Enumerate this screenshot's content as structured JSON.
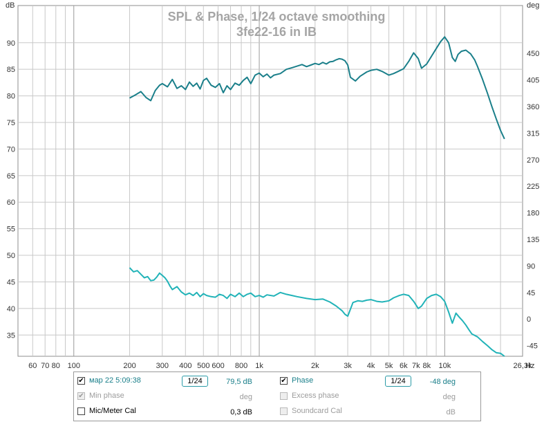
{
  "chart_data": {
    "type": "line",
    "title": "SPL & Phase, 1/24 octave smoothing",
    "subtitle": "3fe22-16 in IB",
    "ylabel_left": "dB",
    "ylabel_right": "deg",
    "xlabel": "Hz",
    "xscale": "log",
    "xlim": [
      50,
      26300
    ],
    "ylim_left": [
      31,
      97
    ],
    "ylim_right": [
      -63,
      531
    ],
    "x_ticks": [
      {
        "v": 60,
        "label": "60"
      },
      {
        "v": 70,
        "label": "70"
      },
      {
        "v": 80,
        "label": "80"
      },
      {
        "v": 100,
        "label": "100"
      },
      {
        "v": 200,
        "label": "200"
      },
      {
        "v": 300,
        "label": "300"
      },
      {
        "v": 400,
        "label": "400"
      },
      {
        "v": 500,
        "label": "500"
      },
      {
        "v": 600,
        "label": "600"
      },
      {
        "v": 800,
        "label": "800"
      },
      {
        "v": 1000,
        "label": "1k"
      },
      {
        "v": 2000,
        "label": "2k"
      },
      {
        "v": 3000,
        "label": "3k"
      },
      {
        "v": 4000,
        "label": "4k"
      },
      {
        "v": 5000,
        "label": "5k"
      },
      {
        "v": 6000,
        "label": "6k"
      },
      {
        "v": 7000,
        "label": "7k"
      },
      {
        "v": 8000,
        "label": "8k"
      },
      {
        "v": 10000,
        "label": "10k"
      },
      {
        "v": 26300,
        "label": "26,3k"
      }
    ],
    "y_ticks_left": [
      "35",
      "40",
      "45",
      "50",
      "55",
      "60",
      "65",
      "70",
      "75",
      "80",
      "85",
      "90"
    ],
    "y_ticks_right": [
      "-45",
      "0",
      "45",
      "90",
      "135",
      "180",
      "225",
      "270",
      "315",
      "360",
      "405",
      "450"
    ],
    "grid": true,
    "series": [
      {
        "name": "мар 22 5:09:38",
        "axis": "left",
        "color": "#1a7f8a",
        "x": [
          200,
          215,
          230,
          245,
          260,
          275,
          290,
          300,
          320,
          340,
          360,
          380,
          400,
          420,
          440,
          460,
          480,
          500,
          520,
          550,
          580,
          610,
          640,
          670,
          700,
          740,
          780,
          820,
          860,
          900,
          950,
          1000,
          1050,
          1100,
          1150,
          1200,
          1300,
          1400,
          1500,
          1600,
          1700,
          1800,
          1900,
          2000,
          2100,
          2200,
          2300,
          2400,
          2500,
          2600,
          2700,
          2800,
          2900,
          3000,
          3100,
          3300,
          3500,
          3800,
          4000,
          4300,
          4600,
          5000,
          5300,
          5600,
          6000,
          6400,
          6800,
          7200,
          7500,
          8000,
          8500,
          9000,
          9500,
          10000,
          10500,
          11000,
          11400,
          11800,
          12300,
          13000,
          13800,
          14500,
          15000,
          16000,
          17000,
          18000,
          19000,
          20000,
          21000
        ],
        "values": [
          79.6,
          80.2,
          80.8,
          79.7,
          79.1,
          81.0,
          82.0,
          82.3,
          81.7,
          83.1,
          81.4,
          81.9,
          81.2,
          82.6,
          81.8,
          82.4,
          81.3,
          82.9,
          83.3,
          82.0,
          81.6,
          82.3,
          80.6,
          81.9,
          81.2,
          82.4,
          82.0,
          82.9,
          83.5,
          82.3,
          83.9,
          84.3,
          83.6,
          84.1,
          83.4,
          83.9,
          84.2,
          85.0,
          85.3,
          85.6,
          85.9,
          85.5,
          85.8,
          86.1,
          85.9,
          86.3,
          86.0,
          86.4,
          86.5,
          86.8,
          87.0,
          86.9,
          86.6,
          85.8,
          83.5,
          82.8,
          83.7,
          84.5,
          84.8,
          85.0,
          84.6,
          83.9,
          84.2,
          84.6,
          85.1,
          86.5,
          88.1,
          87.0,
          85.2,
          86.0,
          87.5,
          88.9,
          90.2,
          91.1,
          90.0,
          87.2,
          86.5,
          87.8,
          88.4,
          88.6,
          87.9,
          86.8,
          85.6,
          83.1,
          80.5,
          77.9,
          75.6,
          73.5,
          71.9
        ]
      },
      {
        "name": "Phase",
        "axis": "right",
        "color": "#21b3b8",
        "x": [
          200,
          210,
          220,
          230,
          240,
          250,
          260,
          270,
          280,
          290,
          300,
          310,
          320,
          330,
          340,
          360,
          380,
          400,
          420,
          440,
          460,
          480,
          500,
          520,
          550,
          580,
          610,
          640,
          670,
          700,
          740,
          780,
          820,
          860,
          900,
          950,
          1000,
          1050,
          1100,
          1200,
          1300,
          1400,
          1500,
          1600,
          1800,
          2000,
          2200,
          2400,
          2600,
          2800,
          2900,
          3000,
          3200,
          3400,
          3600,
          3800,
          4000,
          4300,
          4600,
          5000,
          5300,
          5700,
          6000,
          6400,
          6800,
          7200,
          7500,
          8000,
          8500,
          9000,
          9500,
          10000,
          10500,
          11000,
          11500,
          12000,
          12500,
          13000,
          13500,
          14000,
          15000,
          16000,
          17000,
          18000,
          19000,
          20000,
          21000
        ],
        "values": [
          87,
          80,
          82,
          76,
          70,
          72,
          65,
          66,
          71,
          78,
          74,
          70,
          64,
          56,
          50,
          55,
          46,
          41,
          44,
          40,
          45,
          38,
          43,
          40,
          38,
          37,
          42,
          40,
          35,
          42,
          38,
          44,
          38,
          42,
          44,
          38,
          40,
          37,
          41,
          39,
          45,
          42,
          40,
          38,
          35,
          33,
          34,
          29,
          22,
          14,
          8,
          5,
          28,
          31,
          30,
          32,
          33,
          30,
          29,
          31,
          36,
          40,
          42,
          40,
          30,
          18,
          22,
          35,
          40,
          42,
          38,
          30,
          12,
          -7,
          10,
          3,
          -3,
          -10,
          -18,
          -25,
          -30,
          -38,
          -45,
          -52,
          -57,
          -58,
          -63
        ]
      }
    ]
  },
  "legend": {
    "row1": {
      "name": "мар 22 5:09:38",
      "smoothing": "1/24",
      "value": "79,5 dB",
      "check": "✔"
    },
    "row1b": {
      "name": "Phase",
      "smoothing": "1/24",
      "value": "-48 deg",
      "check": "✔"
    },
    "row2": {
      "name": "Min phase",
      "unit": "deg",
      "check": "✔"
    },
    "row2b": {
      "name": "Excess phase",
      "unit": "deg"
    },
    "row3": {
      "name": "Mic/Meter Cal",
      "value": "0,3 dB"
    },
    "row3b": {
      "name": "Soundcard Cal",
      "unit": "dB"
    }
  }
}
